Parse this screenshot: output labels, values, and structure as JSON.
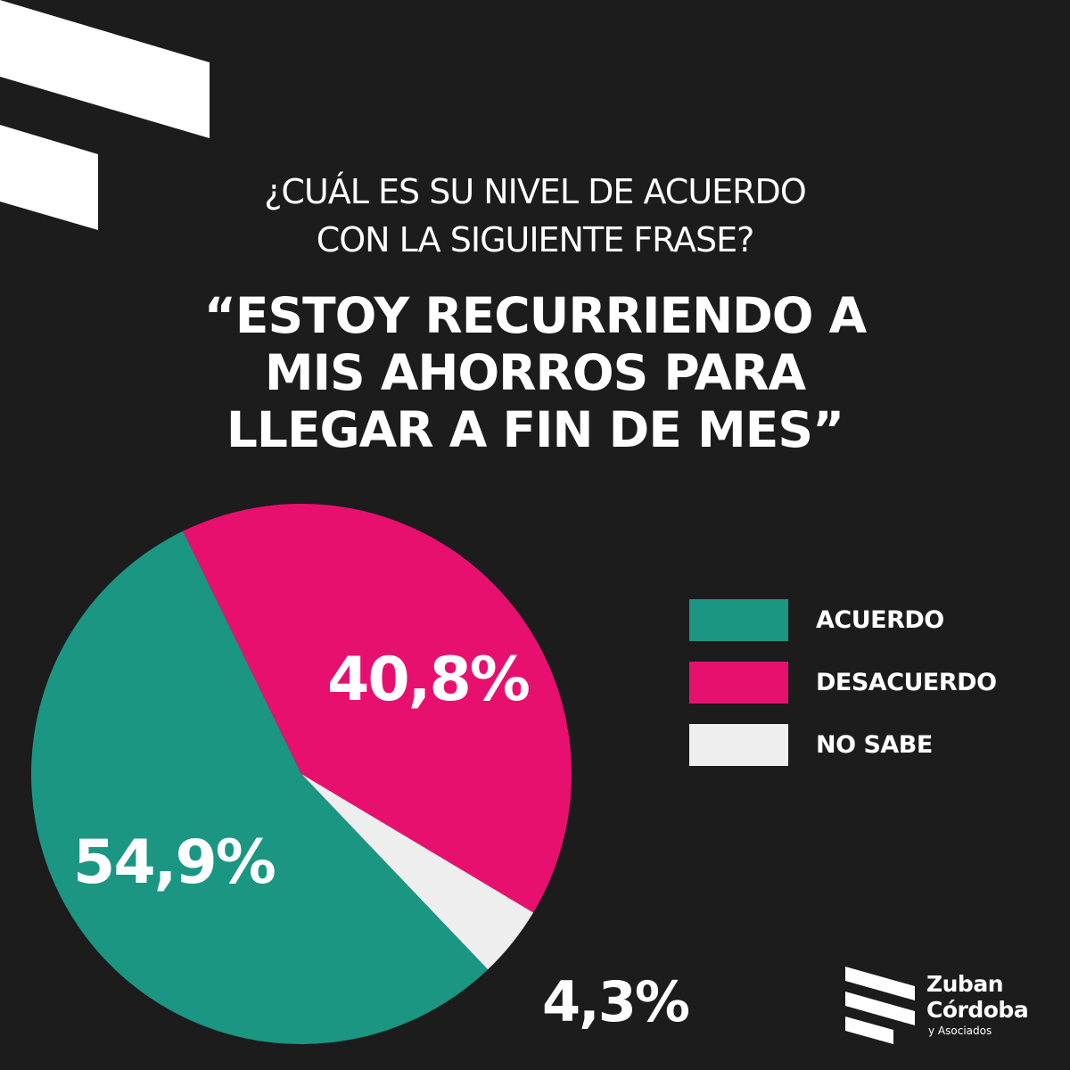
{
  "header": {
    "question_lines": [
      "¿CUÁL ES SU NIVEL DE ACUERDO",
      "CON LA SIGUIENTE FRASE?"
    ],
    "quote_lines": [
      "“ESTOY RECURRIENDO A",
      "MIS AHORROS PARA",
      "LLEGAR A FIN DE MES”"
    ]
  },
  "chart_data": {
    "type": "pie",
    "title": "",
    "slices": [
      {
        "label": "ACUERDO",
        "value": 54.9,
        "display": "54,9%",
        "color": "#1b9683"
      },
      {
        "label": "DESACUERDO",
        "value": 40.8,
        "display": "40,8%",
        "color": "#e8106f"
      },
      {
        "label": "NO SABE",
        "value": 4.3,
        "display": "4,3%",
        "color": "#eeeeee"
      }
    ],
    "legend_position": "right"
  },
  "brand": {
    "name_line1": "Zuban",
    "name_line2": "Córdoba",
    "tagline": "y Asociados"
  },
  "colors": {
    "background": "#1c1c1c",
    "acuerdo": "#1b9683",
    "desacuerdo": "#e8106f",
    "no_sabe": "#eeeeee",
    "text": "#ffffff"
  },
  "icons": {
    "decoration": "corner-stripes",
    "logo": "zuban-cordoba-logo-mark"
  }
}
